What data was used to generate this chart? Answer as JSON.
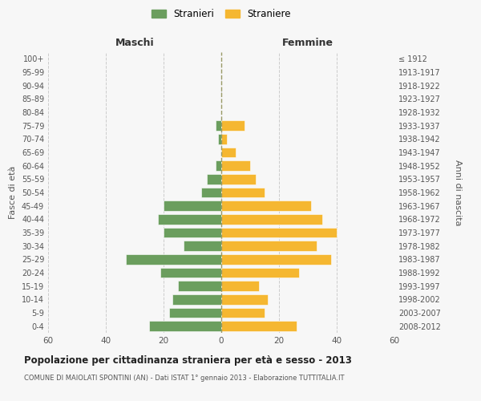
{
  "age_groups_bottom_to_top": [
    "0-4",
    "5-9",
    "10-14",
    "15-19",
    "20-24",
    "25-29",
    "30-34",
    "35-39",
    "40-44",
    "45-49",
    "50-54",
    "55-59",
    "60-64",
    "65-69",
    "70-74",
    "75-79",
    "80-84",
    "85-89",
    "90-94",
    "95-99",
    "100+"
  ],
  "birth_years_bottom_to_top": [
    "2008-2012",
    "2003-2007",
    "1998-2002",
    "1993-1997",
    "1988-1992",
    "1983-1987",
    "1978-1982",
    "1973-1977",
    "1968-1972",
    "1963-1967",
    "1958-1962",
    "1953-1957",
    "1948-1952",
    "1943-1947",
    "1938-1942",
    "1933-1937",
    "1928-1932",
    "1923-1927",
    "1918-1922",
    "1913-1917",
    "≤ 1912"
  ],
  "maschi_bottom_to_top": [
    25,
    18,
    17,
    15,
    21,
    33,
    13,
    20,
    22,
    20,
    7,
    5,
    2,
    0,
    1,
    2,
    0,
    0,
    0,
    0,
    0
  ],
  "femmine_bottom_to_top": [
    26,
    15,
    16,
    13,
    27,
    38,
    33,
    40,
    35,
    31,
    15,
    12,
    10,
    5,
    2,
    8,
    0,
    0,
    0,
    0,
    0
  ],
  "color_maschi": "#6b9e5e",
  "color_femmine": "#f5b731",
  "background_color": "#f7f7f7",
  "grid_color": "#cccccc",
  "center_line_color": "#999966",
  "title": "Popolazione per cittadinanza straniera per età e sesso - 2013",
  "subtitle": "COMUNE DI MAIOLATI SPONTINI (AN) - Dati ISTAT 1° gennaio 2013 - Elaborazione TUTTITALIA.IT",
  "header_left": "Maschi",
  "header_right": "Femmine",
  "ylabel_left": "Fasce di età",
  "ylabel_right": "Anni di nascita",
  "xlim": 60,
  "legend_maschi": "Stranieri",
  "legend_femmine": "Straniere"
}
